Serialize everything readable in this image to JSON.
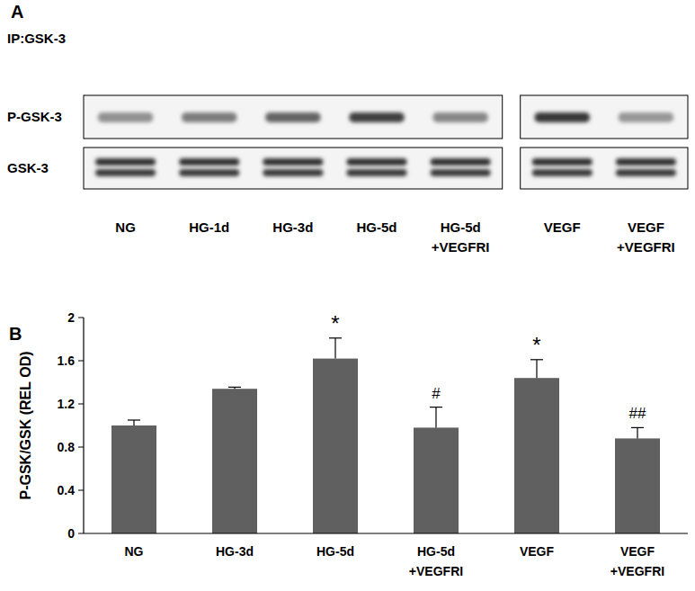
{
  "panel_a": {
    "label": "A",
    "ip_label": "IP:GSK-3",
    "row_labels": [
      "P-GSK-3",
      "GSK-3"
    ],
    "lanes": [
      [
        "NG"
      ],
      [
        "HG-1d"
      ],
      [
        "HG-3d"
      ],
      [
        "HG-5d"
      ],
      [
        "HG-5d",
        "+VEGFRI"
      ],
      [
        "VEGF"
      ],
      [
        "VEGF",
        "+VEGFRI"
      ]
    ],
    "blot_groups": [
      5,
      2
    ],
    "p_gsk_intensity": [
      0.45,
      0.55,
      0.68,
      0.85,
      0.5,
      0.9,
      0.42
    ]
  },
  "chart_data": {
    "type": "bar",
    "title": "B",
    "categories": [
      "NG",
      "HG-3d",
      "HG-5d",
      "HG-5d\n+VEGFRI",
      "VEGF",
      "VEGF\n+VEGFRI"
    ],
    "values": [
      1.0,
      1.34,
      1.62,
      0.98,
      1.44,
      0.88
    ],
    "errors": [
      0.05,
      0.015,
      0.19,
      0.19,
      0.17,
      0.1
    ],
    "significance": [
      null,
      null,
      "*",
      "#",
      "*",
      "##"
    ],
    "y_label": "P-GSK/GSK (REL OD)",
    "color": "#606060",
    "ylim": [
      0,
      2
    ],
    "yticks": [
      0,
      0.4,
      0.8,
      1.2,
      1.6,
      2
    ],
    "grid": false
  }
}
